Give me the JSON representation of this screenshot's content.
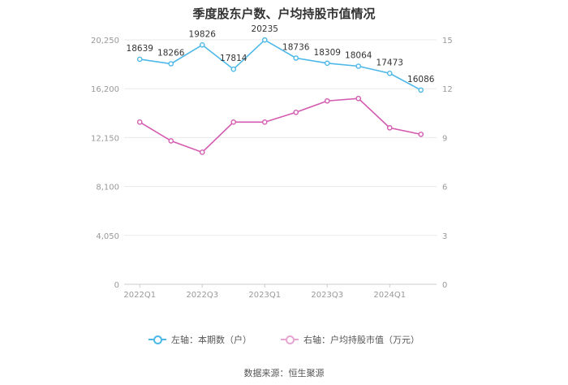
{
  "title": "季度股东户数、户均持股市值情况",
  "source": "数据来源：恒生聚源",
  "colors": {
    "left_series": "#4db8e8",
    "right_series": "#d45bb0",
    "grid": "#e8e8e8",
    "axis_text": "#999999"
  },
  "chart_data": {
    "type": "line",
    "x": [
      "2022Q1",
      "2022Q2",
      "2022Q3",
      "2022Q4",
      "2023Q1",
      "2023Q2",
      "2023Q3",
      "2023Q4",
      "2024Q1",
      "2024Q2"
    ],
    "x_tick_labels": [
      "2022Q1",
      "2022Q3",
      "2023Q1",
      "2023Q3",
      "2024Q1"
    ],
    "y_left": {
      "ticks": [
        0,
        4050,
        8100,
        12150,
        16200,
        20250
      ],
      "tick_labels": [
        "0",
        "4,050",
        "8,100",
        "12,150",
        "16,200",
        "20,250"
      ],
      "ylim": [
        0,
        20250
      ]
    },
    "y_right": {
      "ticks": [
        0,
        3,
        6,
        9,
        12,
        15
      ],
      "tick_labels": [
        "0",
        "3",
        "6",
        "9",
        "12",
        "15"
      ],
      "ylim": [
        0,
        15
      ]
    },
    "series": [
      {
        "name": "左轴：本期数（户）",
        "axis": "left",
        "color": "#4db8e8",
        "values": [
          18639,
          18266,
          19826,
          17814,
          20235,
          18736,
          18309,
          18064,
          17473,
          16086
        ],
        "data_labels": [
          "18639",
          "18266",
          "19826",
          "17814",
          "20235",
          "18736",
          "18309",
          "18064",
          "17473",
          "16086"
        ]
      },
      {
        "name": "右轴：户均持股市值（万元）",
        "axis": "right",
        "color": "#d45bb0",
        "values": [
          9.95,
          8.8,
          8.1,
          9.95,
          9.95,
          10.55,
          11.25,
          11.4,
          9.6,
          9.2
        ]
      }
    ],
    "grid": true,
    "legend": "bottom-center"
  }
}
